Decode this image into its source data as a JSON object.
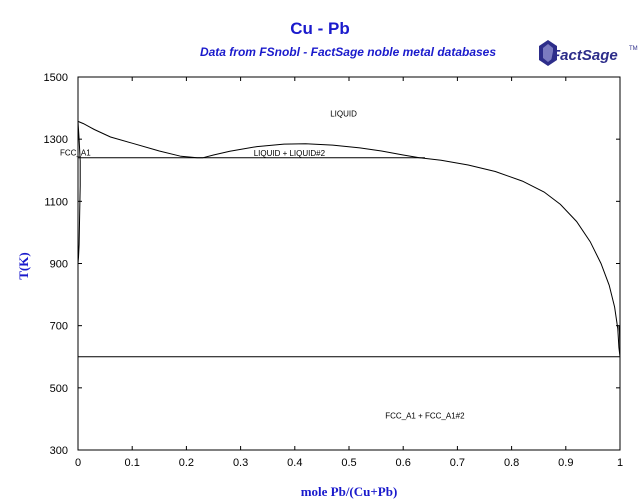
{
  "title": "Cu - Pb",
  "subtitle": "Data from FSnobl - FactSage noble metal databases",
  "logo_text": "FactSage",
  "logo_tm": "TM",
  "colors": {
    "title": "#1a1acc",
    "axes": "#000000",
    "curves": "#000000",
    "background": "#ffffff",
    "logo": "#2d2d8a"
  },
  "chart_data": {
    "type": "line",
    "title": "Cu - Pb",
    "subtitle": "Data from FSnobl - FactSage noble metal databases",
    "xlabel": "mole Pb/(Cu+Pb)",
    "ylabel": "T(K)",
    "xlim": [
      0,
      1
    ],
    "ylim": [
      300,
      1500
    ],
    "xticks": [
      0,
      0.1,
      0.2,
      0.3,
      0.4,
      0.5,
      0.6,
      0.7,
      0.8,
      0.9,
      1
    ],
    "xtick_labels": [
      "0",
      "0.1",
      "0.2",
      "0.3",
      "0.4",
      "0.5",
      "0.6",
      "0.7",
      "0.8",
      "0.9",
      "1"
    ],
    "yticks": [
      300,
      500,
      700,
      900,
      1100,
      1300,
      1500
    ],
    "ytick_labels": [
      "300",
      "500",
      "700",
      "900",
      "1100",
      "1300",
      "1500"
    ],
    "grid": false,
    "legend": false,
    "region_labels": [
      {
        "text": "LIQUID",
        "x": 0.49,
        "y": 1383
      },
      {
        "text": "LIQUID + LIQUID#2",
        "x": 0.39,
        "y": 1255
      },
      {
        "text": "FCC_A1",
        "x": 0.0,
        "y": 1257
      },
      {
        "text": "FCC_A1 + FCC_A1#2",
        "x": 0.64,
        "y": 411
      }
    ],
    "series": [
      {
        "values": [
          [
            0,
            1357
          ],
          [
            0.01,
            1350
          ],
          [
            0.03,
            1331
          ],
          [
            0.06,
            1307
          ],
          [
            0.1,
            1287
          ],
          [
            0.15,
            1262
          ],
          [
            0.19,
            1245
          ],
          [
            0.22,
            1240
          ],
          [
            0.23,
            1240
          ],
          [
            0.25,
            1249
          ],
          [
            0.28,
            1261
          ],
          [
            0.33,
            1276
          ],
          [
            0.38,
            1284
          ],
          [
            0.42,
            1285
          ],
          [
            0.47,
            1281
          ],
          [
            0.52,
            1272
          ],
          [
            0.56,
            1262
          ],
          [
            0.6,
            1249
          ],
          [
            0.63,
            1240
          ],
          [
            0.67,
            1232
          ],
          [
            0.72,
            1217
          ],
          [
            0.77,
            1196
          ],
          [
            0.82,
            1165
          ],
          [
            0.86,
            1130
          ],
          [
            0.89,
            1090
          ],
          [
            0.92,
            1035
          ],
          [
            0.945,
            970
          ],
          [
            0.965,
            900
          ],
          [
            0.98,
            830
          ],
          [
            0.99,
            760
          ],
          [
            0.996,
            690
          ],
          [
            0.998,
            630
          ],
          [
            1.0,
            600
          ]
        ]
      },
      {
        "values": [
          [
            0,
            1357
          ],
          [
            0.002,
            1300
          ],
          [
            0.004,
            1230
          ],
          [
            0.004,
            1150
          ],
          [
            0.003,
            1050
          ],
          [
            0.002,
            960
          ],
          [
            0.001,
            920
          ],
          [
            0.0,
            900
          ]
        ]
      },
      {
        "values": [
          [
            0,
            1240
          ],
          [
            0.64,
            1240
          ]
        ]
      },
      {
        "values": [
          [
            0,
            600
          ],
          [
            1.0,
            600
          ]
        ]
      },
      {
        "values": [
          [
            1.0,
            600
          ],
          [
            0.999,
            680
          ],
          [
            0.998,
            700
          ]
        ]
      }
    ]
  }
}
